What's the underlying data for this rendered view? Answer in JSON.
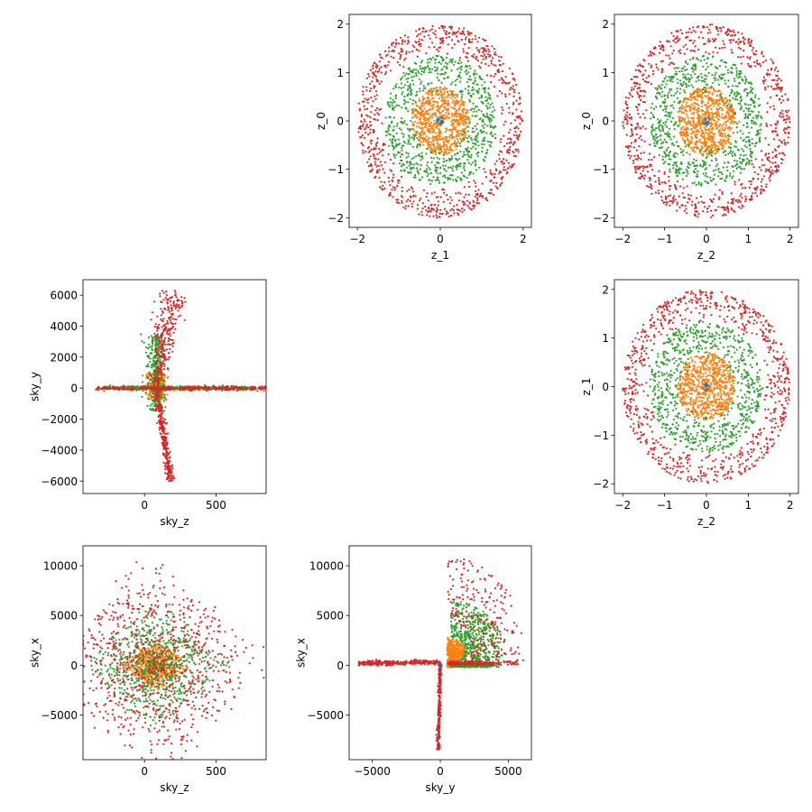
{
  "colors": {
    "blue": "#1f77b4",
    "orange": "#ff7f0e",
    "green": "#2ca02c",
    "red": "#d62728"
  },
  "chart_data": [
    {
      "id": "z1-z0",
      "type": "scatter",
      "xlabel": "z_1",
      "ylabel": "z_0",
      "xlim": [
        -2.2,
        2.2
      ],
      "ylim": [
        -2.2,
        2.2
      ],
      "xticks": [
        -2,
        0,
        2
      ],
      "yticks": [
        -2,
        -1,
        0,
        1,
        2
      ],
      "grid": false,
      "series": [
        {
          "color": "#1f77b4",
          "shape": "ring",
          "inner_radius": 0.0,
          "outer_radius": 0.1,
          "count": 40
        },
        {
          "color": "#ff7f0e",
          "shape": "ring",
          "inner_radius": 0.0,
          "outer_radius": 0.7,
          "count": 700
        },
        {
          "color": "#2ca02c",
          "shape": "ring",
          "inner_radius": 0.55,
          "outer_radius": 1.35,
          "count": 750
        },
        {
          "color": "#d62728",
          "shape": "ring",
          "inner_radius": 1.35,
          "outer_radius": 2.0,
          "count": 800
        }
      ]
    },
    {
      "id": "z2-z0",
      "type": "scatter",
      "xlabel": "z_2",
      "ylabel": "z_0",
      "xlim": [
        -2.2,
        2.2
      ],
      "ylim": [
        -2.2,
        2.2
      ],
      "xticks": [
        -2,
        -1,
        0,
        1,
        2
      ],
      "yticks": [
        -2,
        -1,
        0,
        1,
        2
      ],
      "grid": false,
      "series": [
        {
          "color": "#1f77b4",
          "shape": "ring",
          "inner_radius": 0.0,
          "outer_radius": 0.1,
          "count": 40
        },
        {
          "color": "#ff7f0e",
          "shape": "ring",
          "inner_radius": 0.0,
          "outer_radius": 0.7,
          "count": 700
        },
        {
          "color": "#2ca02c",
          "shape": "ring",
          "inner_radius": 0.55,
          "outer_radius": 1.35,
          "count": 750
        },
        {
          "color": "#d62728",
          "shape": "ring",
          "inner_radius": 1.35,
          "outer_radius": 2.0,
          "count": 800
        }
      ]
    },
    {
      "id": "skyz-skyy",
      "type": "scatter",
      "xlabel": "sky_z",
      "ylabel": "sky_y",
      "xlim": [
        -430,
        850
      ],
      "ylim": [
        -6800,
        7000
      ],
      "xticks": [
        0,
        500
      ],
      "yticks": [
        -6000,
        -4000,
        -2000,
        0,
        2000,
        4000,
        6000
      ],
      "grid": false,
      "series": [
        {
          "color": "#1f77b4",
          "shape": "blob",
          "cx": 80,
          "cy": 0,
          "sx": 10,
          "sy": 60,
          "count": 40
        },
        {
          "color": "#ff7f0e",
          "shape": "cross",
          "cx": 80,
          "cy": 0,
          "h": [
            -200,
            350
          ],
          "v": [
            -800,
            1000
          ],
          "count": 500
        },
        {
          "color": "#2ca02c",
          "shape": "cross",
          "cx": 80,
          "cy": 0,
          "h": [
            -380,
            700
          ],
          "v": [
            -1500,
            3500
          ],
          "count": 700
        },
        {
          "color": "#d62728",
          "shape": "spikes",
          "cx": 80,
          "cy": 0,
          "h": [
            -420,
            800
          ],
          "up": [
            6300,
            200
          ],
          "down": [
            -6000,
            170
          ],
          "count": 900
        }
      ]
    },
    {
      "id": "z2-z1",
      "type": "scatter",
      "xlabel": "z_2",
      "ylabel": "z_1",
      "xlim": [
        -2.2,
        2.2
      ],
      "ylim": [
        -2.2,
        2.2
      ],
      "xticks": [
        -2,
        -1,
        0,
        1,
        2
      ],
      "yticks": [
        -2,
        -1,
        0,
        1,
        2
      ],
      "grid": false,
      "series": [
        {
          "color": "#1f77b4",
          "shape": "ring",
          "inner_radius": 0.0,
          "outer_radius": 0.1,
          "count": 40
        },
        {
          "color": "#ff7f0e",
          "shape": "ring",
          "inner_radius": 0.0,
          "outer_radius": 0.7,
          "count": 700
        },
        {
          "color": "#2ca02c",
          "shape": "ring",
          "inner_radius": 0.55,
          "outer_radius": 1.35,
          "count": 750
        },
        {
          "color": "#d62728",
          "shape": "ring",
          "inner_radius": 1.35,
          "outer_radius": 2.0,
          "count": 800
        }
      ]
    },
    {
      "id": "skyz-skyx",
      "type": "scatter",
      "xlabel": "sky_z",
      "ylabel": "sky_x",
      "xlim": [
        -430,
        850
      ],
      "ylim": [
        -9500,
        12000
      ],
      "xticks": [
        0,
        500
      ],
      "yticks": [
        -5000,
        0,
        5000,
        10000
      ],
      "grid": false,
      "series": [
        {
          "color": "#1f77b4",
          "shape": "blob",
          "cx": 80,
          "cy": 0,
          "sx": 10,
          "sy": 80,
          "count": 40
        },
        {
          "color": "#ff7f0e",
          "shape": "diamond",
          "cx": 80,
          "cy": 0,
          "rx": 250,
          "ry": 2500,
          "count": 500
        },
        {
          "color": "#2ca02c",
          "shape": "diamond",
          "cx": 80,
          "cy": 0,
          "rx": 500,
          "ry": 6500,
          "count": 700
        },
        {
          "color": "#d62728",
          "shape": "diamond",
          "cx": 80,
          "cy": 0,
          "rx": 780,
          "ry": 11000,
          "count": 900
        }
      ]
    },
    {
      "id": "skyy-skyx",
      "type": "scatter",
      "xlabel": "sky_y",
      "ylabel": "sky_x",
      "xlim": [
        -6700,
        6700
      ],
      "ylim": [
        -9500,
        12000
      ],
      "xticks": [
        -5000,
        0,
        5000
      ],
      "yticks": [
        -5000,
        0,
        5000,
        10000
      ],
      "grid": false,
      "series": [
        {
          "color": "#1f77b4",
          "shape": "blob",
          "cx": 0,
          "cy": 0,
          "sx": 60,
          "sy": 80,
          "count": 40
        },
        {
          "color": "#ff7f0e",
          "shape": "halfring",
          "cx": 500,
          "cy": 800,
          "r0": 200,
          "r1": 1800,
          "count": 500
        },
        {
          "color": "#2ca02c",
          "shape": "halfring",
          "cx": 800,
          "cy": 1500,
          "r0": 1200,
          "r1": 4500,
          "count": 700
        },
        {
          "color": "#d62728",
          "shape": "comet",
          "tail_x": -6000,
          "spike_y": -8500,
          "r0": 3000,
          "r1": 9500,
          "count": 900
        }
      ]
    }
  ]
}
